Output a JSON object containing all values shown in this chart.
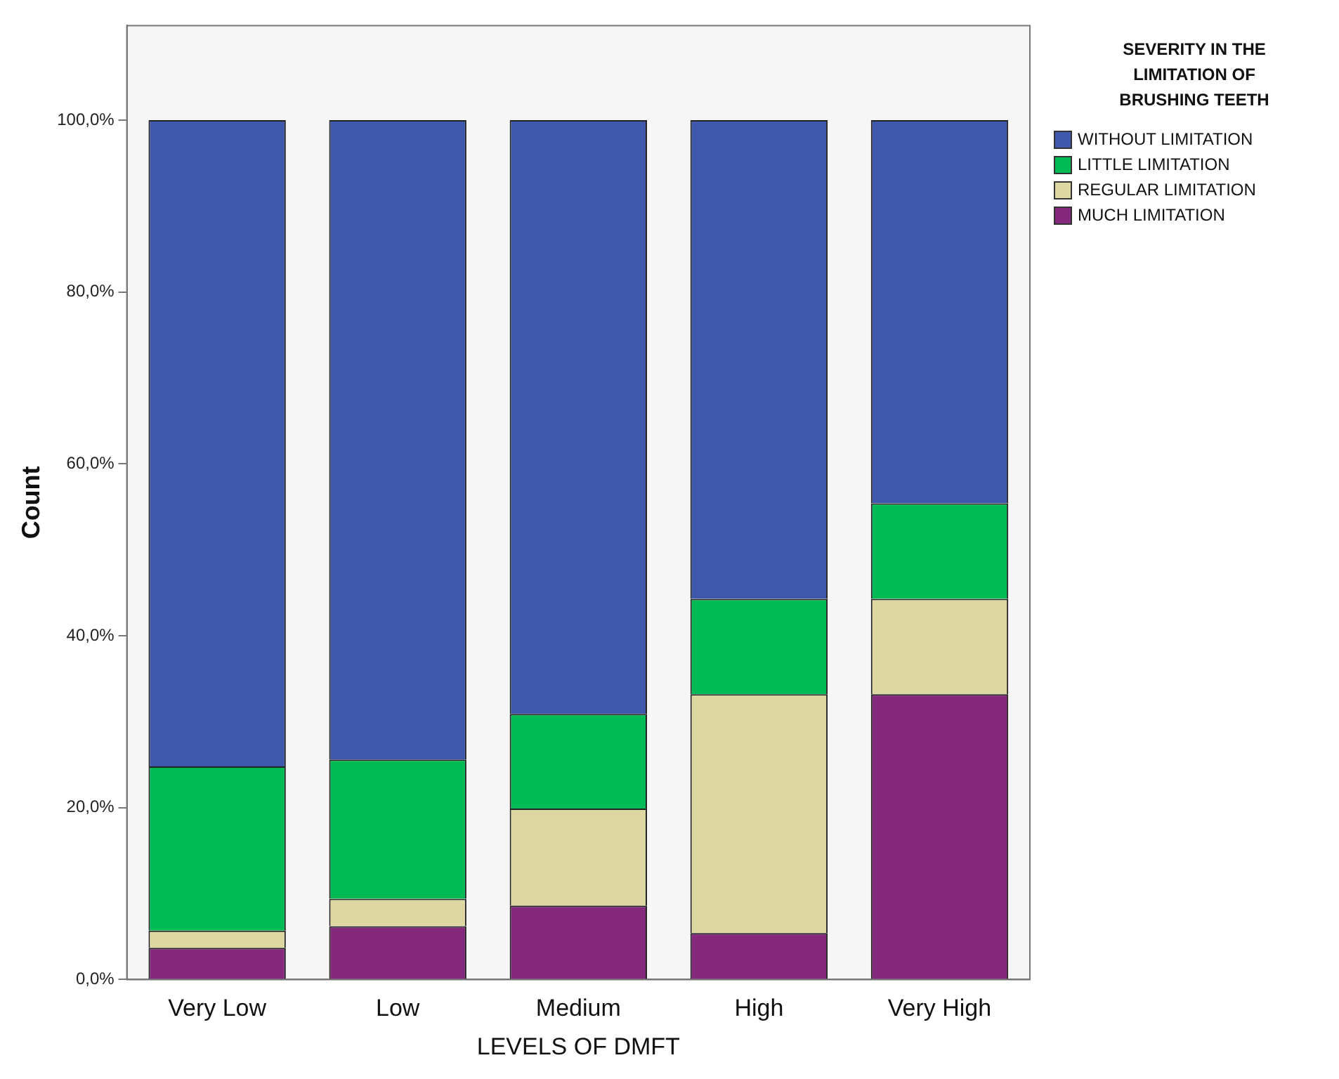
{
  "chart_data": {
    "type": "bar",
    "stacked": true,
    "xlabel": "LEVELS OF DMFT",
    "ylabel": "Count",
    "legend_title": "SEVERITY IN THE LIMITATION OF BRUSHING TEETH",
    "legend": "right",
    "categories": [
      "Very Low",
      "Low",
      "Medium",
      "High",
      "Very High"
    ],
    "series": [
      {
        "name": "MUCH LIMITATION",
        "color": "#84297c",
        "values": [
          3.7,
          6.2,
          8.6,
          5.4,
          33.2
        ]
      },
      {
        "name": "REGULAR LIMITATION",
        "color": "#ddd7a2",
        "values": [
          2.0,
          3.2,
          11.3,
          27.8,
          11.1
        ]
      },
      {
        "name": "LITTLE LIMITATION",
        "color": "#00bb55",
        "values": [
          19.1,
          16.2,
          11.0,
          11.1,
          11.1
        ]
      },
      {
        "name": "WITHOUT LIMITATION",
        "color": "#3f58ac",
        "values": [
          75.2,
          74.4,
          69.1,
          55.7,
          44.6
        ]
      }
    ],
    "ylim": [
      0,
      111
    ],
    "yticks": [
      {
        "value": 0,
        "label": "0,0%"
      },
      {
        "value": 20,
        "label": "20,0%"
      },
      {
        "value": 40,
        "label": "40,0%"
      },
      {
        "value": 60,
        "label": "60,0%"
      },
      {
        "value": 80,
        "label": "80,0%"
      },
      {
        "value": 100,
        "label": "100,0%"
      }
    ],
    "grid": false
  }
}
